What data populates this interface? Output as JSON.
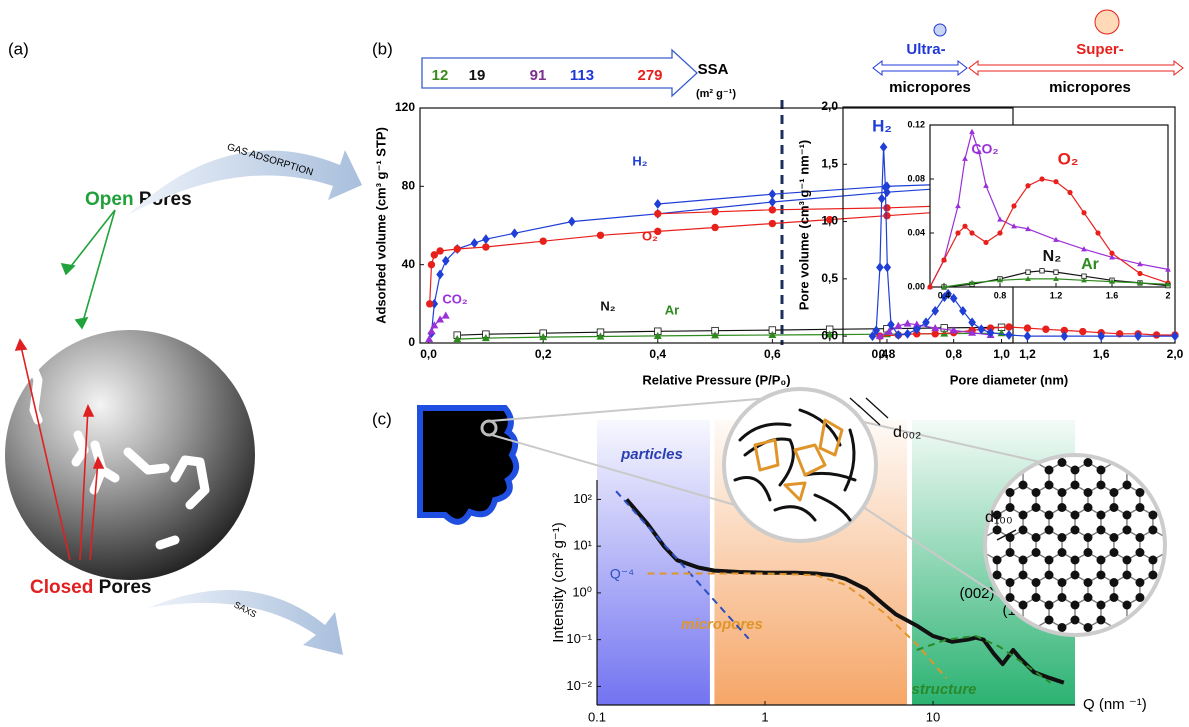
{
  "panel_labels": [
    "(a)",
    "(b)",
    "(c)"
  ],
  "panel_a": {
    "open_word": "Open",
    "pores_word": "Pores",
    "closed_word": "Closed",
    "arrow_gas": "GAS ADSORPTION",
    "arrow_saxs": "SAXS"
  },
  "ssa": {
    "values": [
      12,
      19,
      91,
      113,
      279
    ],
    "colors": [
      "#3a8a1e",
      "#111111",
      "#7a2f8f",
      "#2038d8",
      "#e8201c"
    ],
    "label": "SSA",
    "unit": "(m² g⁻¹)"
  },
  "pore_scale": {
    "ultra": "Ultra-",
    "super": "Super-",
    "micropores": "micropores"
  },
  "zoom": {
    "d002": "d₀₀₂",
    "d100": "d₁₀₀"
  },
  "chart_data": [
    {
      "type": "line",
      "xlabel": "Relative Pressure (P/P₀)",
      "ylabel": "Adsorbed volume (cm³ g⁻¹ STP)",
      "xlim": [
        -0.015,
        1.02
      ],
      "ylim": [
        0,
        120
      ],
      "xticks": [
        {
          "value": 0,
          "label": "0,0"
        },
        {
          "value": 0.2,
          "label": "0,2"
        },
        {
          "value": 0.4,
          "label": "0,4"
        },
        {
          "value": 0.6,
          "label": "0,6"
        },
        {
          "value": 0.8,
          "label": "0,8"
        },
        {
          "value": 1.0,
          "label": "1,0"
        }
      ],
      "yticks": [
        0,
        40,
        80,
        120
      ],
      "series": [
        {
          "name": "H₂",
          "color": "#1f3fd6",
          "marker": "diamond",
          "x": [
            0.005,
            0.01,
            0.02,
            0.03,
            0.05,
            0.08,
            0.1,
            0.15,
            0.25,
            0.4,
            0.6,
            0.8,
            0.9,
            0.95,
            1.0,
            0.95,
            0.9,
            0.8,
            0.6,
            0.4
          ],
          "values": [
            5,
            20,
            35,
            42,
            48,
            51,
            53,
            56,
            62,
            66,
            72,
            77,
            79,
            81,
            82,
            81,
            81,
            80,
            76,
            71
          ]
        },
        {
          "name": "O₂",
          "color": "#e8201c",
          "marker": "circle",
          "x": [
            0.002,
            0.005,
            0.01,
            0.02,
            0.05,
            0.1,
            0.2,
            0.3,
            0.4,
            0.5,
            0.6,
            0.7,
            0.8,
            0.9,
            0.95,
            0.99,
            1.0,
            0.9,
            0.8,
            0.6,
            0.5,
            0.4
          ],
          "values": [
            20,
            40,
            45,
            47,
            48,
            49,
            52,
            55,
            57,
            59,
            61,
            63,
            65,
            67,
            69,
            72,
            76,
            70,
            69,
            68,
            67,
            66
          ]
        },
        {
          "name": "CO₂",
          "color": "#9b30d9",
          "marker": "triangle",
          "x": [
            0.001,
            0.005,
            0.01,
            0.02,
            0.03
          ],
          "values": [
            2,
            6,
            9,
            12,
            14
          ]
        },
        {
          "name": "N₂",
          "color": "#111111",
          "marker": "square",
          "x": [
            0.05,
            0.1,
            0.2,
            0.3,
            0.4,
            0.5,
            0.6,
            0.7,
            0.8,
            0.9,
            1.0
          ],
          "values": [
            4,
            4.5,
            5,
            5.5,
            6,
            6.3,
            6.6,
            7,
            7.3,
            7.7,
            8
          ]
        },
        {
          "name": "Ar",
          "color": "#2e8b1e",
          "marker": "triangle",
          "x": [
            0.05,
            0.1,
            0.2,
            0.3,
            0.4,
            0.5,
            0.6,
            0.7,
            0.8,
            0.9,
            1.0
          ],
          "values": [
            2,
            2.5,
            3,
            3.3,
            3.6,
            3.9,
            4.1,
            4.3,
            4.5,
            4.8,
            5
          ]
        }
      ]
    },
    {
      "type": "line",
      "xlabel": "Pore diameter (nm)",
      "ylabel": "Pore volume (cm³ g⁻¹ nm⁻¹)",
      "xlim": [
        0.2,
        2.0
      ],
      "ylim": [
        -0.06,
        2.0
      ],
      "xticks": [
        {
          "value": 0.4,
          "label": "0,4"
        },
        {
          "value": 0.8,
          "label": "0,8"
        },
        {
          "value": 1.2,
          "label": "1,2"
        },
        {
          "value": 1.6,
          "label": "1,6"
        },
        {
          "value": 2.0,
          "label": "2,0"
        }
      ],
      "yticks": [
        {
          "value": 0,
          "label": "0,0"
        },
        {
          "value": 0.5,
          "label": "0,5"
        },
        {
          "value": 1.0,
          "label": "1,0"
        },
        {
          "value": 1.5,
          "label": "1,5"
        },
        {
          "value": 2.0,
          "label": "2,0"
        }
      ],
      "series": [
        {
          "color": "#e8201c",
          "marker": "circle",
          "x": [
            0.4,
            0.5,
            0.6,
            0.7,
            0.8,
            0.9,
            1.0,
            1.1,
            1.2,
            1.3,
            1.4,
            1.5,
            1.6,
            1.7,
            1.8,
            1.9,
            2.0
          ],
          "values": [
            0,
            0.01,
            0.02,
            0.02,
            0.03,
            0.05,
            0.07,
            0.08,
            0.07,
            0.06,
            0.05,
            0.04,
            0.03,
            0.02,
            0.02,
            0.01,
            0.01
          ]
        },
        {
          "color": "#9b30d9",
          "marker": "triangle",
          "x": [
            0.4,
            0.45,
            0.5,
            0.55,
            0.6,
            0.7,
            0.8,
            0.9,
            1.0
          ],
          "values": [
            0,
            0.04,
            0.09,
            0.11,
            0.1,
            0.07,
            0.05,
            0.03,
            0.01
          ]
        },
        {
          "name": "H₂",
          "color": "#1f3fd6",
          "marker": "diamond",
          "x": [
            0.36,
            0.38,
            0.4,
            0.41,
            0.42,
            0.43,
            0.44,
            0.46,
            0.5,
            0.55,
            0.6,
            0.65,
            0.7,
            0.75,
            0.77,
            0.8,
            0.85,
            0.9,
            0.95,
            1.0,
            1.1,
            1.2,
            1.4,
            1.6,
            1.8,
            2.0
          ],
          "values": [
            0,
            0.05,
            0.6,
            1.2,
            1.65,
            1.3,
            0.6,
            0.1,
            0.01,
            0.02,
            0.06,
            0.12,
            0.22,
            0.34,
            0.37,
            0.33,
            0.22,
            0.12,
            0.06,
            0.03,
            0.01,
            0,
            0,
            0,
            0,
            0
          ]
        }
      ]
    },
    {
      "type": "line",
      "xlim": [
        0.3,
        2.0
      ],
      "ylim": [
        0,
        0.12
      ],
      "xticks": [
        0.4,
        0.8,
        1.2,
        1.6,
        2.0
      ],
      "yticks": [
        {
          "value": 0,
          "label": "0.00"
        },
        0.04,
        0.08,
        0.12
      ],
      "series": [
        {
          "name": "CO₂",
          "color": "#9b30d9",
          "marker": "triangle",
          "x": [
            0.3,
            0.4,
            0.5,
            0.55,
            0.6,
            0.65,
            0.7,
            0.8,
            0.9,
            1.0,
            1.2,
            1.4,
            1.6,
            1.8,
            2.0
          ],
          "values": [
            0,
            0.02,
            0.06,
            0.095,
            0.115,
            0.1,
            0.075,
            0.05,
            0.045,
            0.043,
            0.035,
            0.028,
            0.022,
            0.017,
            0.013
          ]
        },
        {
          "name": "O₂",
          "color": "#e8201c",
          "marker": "circle",
          "x": [
            0.3,
            0.4,
            0.5,
            0.55,
            0.6,
            0.7,
            0.8,
            0.9,
            1.0,
            1.1,
            1.2,
            1.3,
            1.4,
            1.5,
            1.6,
            1.8,
            2.0
          ],
          "values": [
            0,
            0.02,
            0.04,
            0.045,
            0.04,
            0.033,
            0.04,
            0.06,
            0.075,
            0.08,
            0.078,
            0.07,
            0.055,
            0.04,
            0.025,
            0.01,
            0.003
          ]
        },
        {
          "name": "N₂",
          "color": "#111111",
          "marker": "square",
          "x": [
            0.4,
            0.6,
            0.8,
            1.0,
            1.1,
            1.2,
            1.4,
            1.6,
            1.8,
            2.0
          ],
          "values": [
            0,
            0.002,
            0.006,
            0.011,
            0.012,
            0.011,
            0.008,
            0.005,
            0.003,
            0.001
          ]
        },
        {
          "name": "Ar",
          "color": "#2e8b1e",
          "marker": "triangle",
          "x": [
            0.4,
            0.6,
            0.8,
            1.0,
            1.2,
            1.4,
            1.6,
            1.8,
            2.0
          ],
          "values": [
            0,
            0.003,
            0.005,
            0.006,
            0.006,
            0.005,
            0.004,
            0.003,
            0.002
          ]
        }
      ]
    },
    {
      "type": "line",
      "xlabel": "Q (nm ⁻¹)",
      "ylabel": "Intensity (cm² g⁻¹)",
      "log_x": true,
      "log_y": true,
      "xlim": [
        0.1,
        70
      ],
      "ylim": [
        0.004,
        5000
      ],
      "xticks": [
        0.1,
        1,
        10
      ],
      "yticks": [
        {
          "value": 100,
          "label": "10²"
        },
        {
          "value": 10,
          "label": "10¹"
        },
        {
          "value": 1,
          "label": "10⁰"
        },
        {
          "value": 0.1,
          "label": "10⁻¹"
        },
        {
          "value": 0.01,
          "label": "10⁻²"
        }
      ],
      "regions": [
        {
          "name": "particles",
          "range": [
            0.1,
            0.47
          ],
          "color": "#6b6cf0"
        },
        {
          "name": "micropores",
          "range": [
            0.5,
            7
          ],
          "color": "#f5a15f"
        },
        {
          "name": "structure",
          "range": [
            7.5,
            70
          ],
          "color": "#1fae6a"
        }
      ],
      "annotations": [
        "(002)",
        "(100)"
      ],
      "series": [
        {
          "color": "#111111",
          "marker": "none",
          "width": 4,
          "x": [
            0.15,
            0.2,
            0.25,
            0.3,
            0.4,
            0.5,
            0.7,
            1,
            1.5,
            2,
            2.5,
            3,
            4,
            5,
            6,
            8,
            10,
            13,
            16,
            18,
            20,
            23,
            26,
            30,
            33,
            40,
            50,
            60
          ],
          "values": [
            100,
            30,
            10,
            5,
            3.5,
            3,
            2.8,
            2.7,
            2.7,
            2.6,
            2.4,
            2,
            1.2,
            0.6,
            0.35,
            0.2,
            0.12,
            0.09,
            0.1,
            0.11,
            0.1,
            0.05,
            0.03,
            0.06,
            0.04,
            0.02,
            0.015,
            0.012
          ]
        },
        {
          "name": "Q⁻⁴",
          "color": "#2b4fc0",
          "marker": "none",
          "dash": true,
          "width": 2,
          "x": [
            0.13,
            0.8
          ],
          "values": [
            150,
            0.105
          ]
        },
        {
          "color": "#e0952a",
          "marker": "none",
          "dash": true,
          "width": 2,
          "x": [
            0.2,
            1,
            2,
            3,
            5,
            8,
            12
          ],
          "values": [
            2.6,
            2.6,
            2.4,
            1.5,
            0.4,
            0.08,
            0.015
          ]
        },
        {
          "color": "#2a8a2a",
          "marker": "none",
          "dash": true,
          "width": 2,
          "x": [
            8,
            12,
            18,
            25,
            35,
            50
          ],
          "values": [
            0.06,
            0.1,
            0.12,
            0.07,
            0.03,
            0.012
          ]
        }
      ]
    }
  ]
}
